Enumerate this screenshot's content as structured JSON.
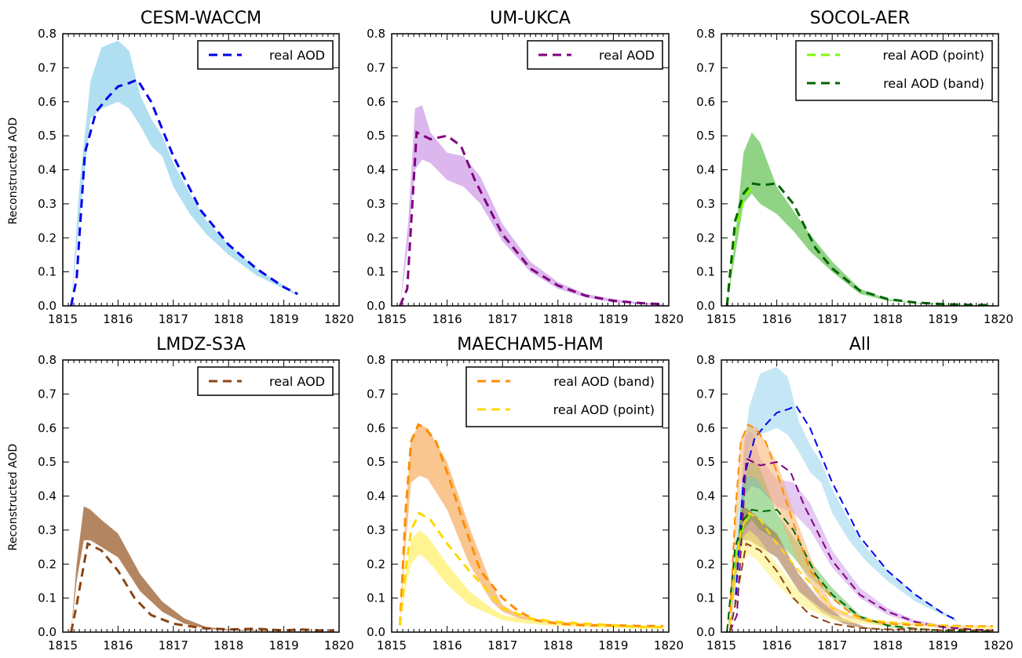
{
  "figure": {
    "ylabel": "Reconstructed AOD",
    "xticks": [
      "1815",
      "1816",
      "1817",
      "1818",
      "1819",
      "1820"
    ],
    "yticks": [
      "0.0",
      "0.1",
      "0.2",
      "0.3",
      "0.4",
      "0.5",
      "0.6",
      "0.7",
      "0.8"
    ]
  },
  "chart_data": [
    {
      "type": "area",
      "title": "CESM-WACCM",
      "xlabel": "",
      "ylabel": "Reconstructed AOD",
      "xlim": [
        1815,
        1820
      ],
      "ylim": [
        0,
        0.8
      ],
      "legend_position": "top-right",
      "bands": [
        {
          "color": "#87CEEB",
          "opacity": 0.65,
          "x": [
            1815.15,
            1815.3,
            1815.5,
            1815.7,
            1816.0,
            1816.2,
            1816.4,
            1816.6,
            1816.8,
            1817.0,
            1817.3,
            1817.6,
            1818.0,
            1818.5,
            1819.0,
            1819.25
          ],
          "upper": [
            0.0,
            0.35,
            0.66,
            0.76,
            0.78,
            0.75,
            0.62,
            0.55,
            0.5,
            0.42,
            0.33,
            0.25,
            0.18,
            0.11,
            0.06,
            0.035
          ],
          "lower": [
            0.0,
            0.25,
            0.55,
            0.58,
            0.6,
            0.58,
            0.53,
            0.47,
            0.44,
            0.35,
            0.27,
            0.21,
            0.15,
            0.09,
            0.05,
            0.03
          ]
        }
      ],
      "series": [
        {
          "name": "real AOD",
          "color": "#0000ee",
          "x": [
            1815.15,
            1815.25,
            1815.4,
            1815.6,
            1815.8,
            1816.0,
            1816.2,
            1816.35,
            1816.6,
            1817.0,
            1817.5,
            1818.0,
            1818.5,
            1819.0,
            1819.25
          ],
          "y": [
            0.0,
            0.08,
            0.45,
            0.57,
            0.61,
            0.645,
            0.655,
            0.665,
            0.6,
            0.44,
            0.28,
            0.18,
            0.11,
            0.055,
            0.035
          ]
        }
      ]
    },
    {
      "type": "area",
      "title": "UM-UKCA",
      "xlabel": "",
      "ylabel": "",
      "xlim": [
        1815,
        1820
      ],
      "ylim": [
        0,
        0.8
      ],
      "legend_position": "top-right",
      "bands": [
        {
          "color": "#cc99e6",
          "opacity": 0.7,
          "x": [
            1815.15,
            1815.3,
            1815.42,
            1815.55,
            1815.7,
            1816.0,
            1816.3,
            1816.6,
            1817.0,
            1817.5,
            1818.0,
            1818.5,
            1819.0,
            1819.5,
            1819.9
          ],
          "upper": [
            0.0,
            0.25,
            0.58,
            0.59,
            0.51,
            0.45,
            0.44,
            0.38,
            0.24,
            0.13,
            0.07,
            0.035,
            0.02,
            0.01,
            0.005
          ],
          "lower": [
            0.0,
            0.18,
            0.4,
            0.43,
            0.42,
            0.37,
            0.35,
            0.3,
            0.19,
            0.1,
            0.05,
            0.025,
            0.01,
            0.005,
            0.0
          ]
        }
      ],
      "series": [
        {
          "name": "real AOD",
          "color": "#800080",
          "x": [
            1815.15,
            1815.28,
            1815.45,
            1815.7,
            1816.0,
            1816.25,
            1816.5,
            1817.0,
            1817.5,
            1818.0,
            1818.5,
            1819.0,
            1819.5,
            1819.9
          ],
          "y": [
            0.0,
            0.05,
            0.51,
            0.49,
            0.5,
            0.47,
            0.37,
            0.21,
            0.11,
            0.06,
            0.03,
            0.015,
            0.008,
            0.005
          ]
        }
      ]
    },
    {
      "type": "area",
      "title": "SOCOL-AER",
      "xlabel": "",
      "ylabel": "",
      "xlim": [
        1815,
        1820
      ],
      "ylim": [
        0,
        0.8
      ],
      "legend_position": "top-right",
      "bands": [
        {
          "color": "#55bb44",
          "opacity": 0.65,
          "x": [
            1815.1,
            1815.25,
            1815.4,
            1815.55,
            1815.7,
            1816.0,
            1816.3,
            1816.6,
            1817.0,
            1817.5,
            1818.0,
            1818.5,
            1819.0,
            1819.5,
            1819.9
          ],
          "upper": [
            0.0,
            0.2,
            0.45,
            0.51,
            0.48,
            0.35,
            0.28,
            0.21,
            0.13,
            0.05,
            0.02,
            0.01,
            0.005,
            0.003,
            0.002
          ],
          "lower": [
            0.0,
            0.15,
            0.3,
            0.33,
            0.3,
            0.27,
            0.22,
            0.16,
            0.1,
            0.035,
            0.015,
            0.008,
            0.004,
            0.002,
            0.0
          ]
        }
      ],
      "series": [
        {
          "name": "real AOD (point)",
          "color": "#7CFC00",
          "x": [
            1815.1,
            1815.25,
            1815.4,
            1815.5,
            1815.6
          ],
          "y": [
            0.0,
            0.22,
            0.31,
            0.34,
            0.36
          ]
        },
        {
          "name": "real AOD (band)",
          "color": "#006400",
          "x": [
            1815.1,
            1815.25,
            1815.4,
            1815.55,
            1815.75,
            1816.0,
            1816.3,
            1816.7,
            1817.0,
            1817.5,
            1818.0,
            1818.5,
            1819.0,
            1819.5,
            1819.9
          ],
          "y": [
            0.0,
            0.25,
            0.33,
            0.36,
            0.355,
            0.36,
            0.3,
            0.17,
            0.11,
            0.045,
            0.02,
            0.01,
            0.005,
            0.003,
            0.002
          ]
        }
      ]
    },
    {
      "type": "area",
      "title": "LMDZ-S3A",
      "xlabel": "",
      "ylabel": "Reconstructed AOD",
      "xlim": [
        1815,
        1820
      ],
      "ylim": [
        0,
        0.8
      ],
      "legend_position": "top-right",
      "bands": [
        {
          "color": "#a0683a",
          "opacity": 0.8,
          "x": [
            1815.15,
            1815.25,
            1815.38,
            1815.5,
            1815.7,
            1816.0,
            1816.4,
            1816.8,
            1817.2,
            1817.6,
            1818.0,
            1818.5,
            1819.0,
            1819.5,
            1819.9
          ],
          "upper": [
            0.0,
            0.2,
            0.37,
            0.36,
            0.33,
            0.29,
            0.17,
            0.09,
            0.04,
            0.015,
            0.008,
            0.005,
            0.003,
            0.002,
            0.002
          ],
          "lower": [
            0.0,
            0.15,
            0.27,
            0.27,
            0.25,
            0.22,
            0.12,
            0.06,
            0.025,
            0.01,
            0.005,
            0.003,
            0.002,
            0.001,
            0.001
          ]
        }
      ],
      "series": [
        {
          "name": "real AOD",
          "color": "#8B4513",
          "x": [
            1815.15,
            1815.25,
            1815.45,
            1815.7,
            1816.0,
            1816.3,
            1816.6,
            1817.0,
            1817.5,
            1818.0,
            1818.5,
            1819.0,
            1819.3,
            1819.6,
            1819.9
          ],
          "y": [
            0.0,
            0.08,
            0.26,
            0.24,
            0.18,
            0.1,
            0.05,
            0.025,
            0.012,
            0.008,
            0.01,
            0.005,
            0.008,
            0.005,
            0.005
          ]
        }
      ]
    },
    {
      "type": "area",
      "title": "MAECHAM5-HAM",
      "xlabel": "",
      "ylabel": "",
      "xlim": [
        1815,
        1820
      ],
      "ylim": [
        0,
        0.8
      ],
      "legend_position": "top-right",
      "bands": [
        {
          "color": "#f7b36b",
          "opacity": 0.75,
          "x": [
            1815.15,
            1815.25,
            1815.35,
            1815.5,
            1815.65,
            1816.0,
            1816.4,
            1816.8,
            1817.0,
            1817.3,
            1817.7,
            1818.0,
            1818.5,
            1819.0,
            1819.5,
            1819.9
          ],
          "upper": [
            0.02,
            0.35,
            0.57,
            0.61,
            0.6,
            0.5,
            0.31,
            0.14,
            0.08,
            0.05,
            0.035,
            0.03,
            0.025,
            0.02,
            0.018,
            0.018
          ],
          "lower": [
            0.02,
            0.25,
            0.44,
            0.46,
            0.45,
            0.36,
            0.2,
            0.09,
            0.06,
            0.04,
            0.03,
            0.025,
            0.02,
            0.017,
            0.015,
            0.015
          ]
        },
        {
          "color": "#fff176",
          "opacity": 0.8,
          "x": [
            1815.15,
            1815.25,
            1815.35,
            1815.5,
            1815.65,
            1816.0,
            1816.4,
            1816.8,
            1817.0,
            1817.3,
            1817.7,
            1818.0,
            1818.5,
            1819.0,
            1819.5,
            1819.9
          ],
          "upper": [
            0.02,
            0.17,
            0.27,
            0.3,
            0.28,
            0.2,
            0.12,
            0.07,
            0.05,
            0.04,
            0.03,
            0.025,
            0.02,
            0.018,
            0.015,
            0.015
          ],
          "lower": [
            0.02,
            0.13,
            0.2,
            0.23,
            0.21,
            0.14,
            0.08,
            0.05,
            0.035,
            0.028,
            0.022,
            0.018,
            0.015,
            0.012,
            0.01,
            0.01
          ]
        }
      ],
      "series": [
        {
          "name": "real AOD (band)",
          "color": "#ff8c00",
          "x": [
            1815.15,
            1815.25,
            1815.35,
            1815.48,
            1815.6,
            1815.8,
            1816.0,
            1816.3,
            1816.6,
            1817.0,
            1817.3,
            1817.6,
            1818.0,
            1818.5,
            1819.0,
            1819.5,
            1819.9
          ],
          "y": [
            0.02,
            0.35,
            0.56,
            0.61,
            0.6,
            0.56,
            0.47,
            0.32,
            0.18,
            0.1,
            0.06,
            0.035,
            0.025,
            0.02,
            0.02,
            0.018,
            0.018
          ]
        },
        {
          "name": "real AOD (point)",
          "color": "#FFD700",
          "x": [
            1815.15,
            1815.25,
            1815.35,
            1815.5,
            1815.7,
            1816.0,
            1816.4,
            1816.8,
            1817.0,
            1817.5,
            1818.0,
            1818.5,
            1819.0,
            1819.5,
            1819.9
          ],
          "y": [
            0.02,
            0.18,
            0.3,
            0.35,
            0.33,
            0.26,
            0.18,
            0.11,
            0.07,
            0.04,
            0.03,
            0.025,
            0.02,
            0.015,
            0.015
          ]
        }
      ]
    },
    {
      "type": "area",
      "title": "All",
      "xlabel": "",
      "ylabel": "",
      "xlim": [
        1815,
        1820
      ],
      "ylim": [
        0,
        0.8
      ],
      "legend_position": "none",
      "composite_of": [
        "CESM-WACCM",
        "UM-UKCA",
        "SOCOL-AER",
        "LMDZ-S3A",
        "MAECHAM5-HAM"
      ]
    }
  ]
}
